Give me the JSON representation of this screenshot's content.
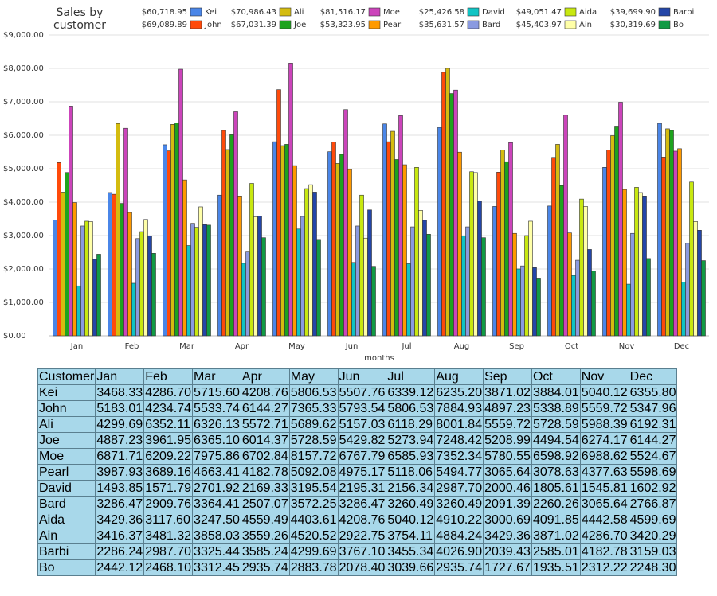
{
  "chart_data": {
    "type": "bar",
    "title": "Sales by customer",
    "x_label": "months",
    "categories": [
      "Jan",
      "Feb",
      "Mar",
      "Apr",
      "May",
      "Jun",
      "Jul",
      "Aug",
      "Sep",
      "Oct",
      "Nov",
      "Dec"
    ],
    "ylim": [
      0,
      9000
    ],
    "yticks": [
      {
        "value": 0,
        "label": "$0.00"
      },
      {
        "value": 1000,
        "label": "$1,000.00"
      },
      {
        "value": 2000,
        "label": "$2,000.00"
      },
      {
        "value": 3000,
        "label": "$3,000.00"
      },
      {
        "value": 4000,
        "label": "$4,000.00"
      },
      {
        "value": 5000,
        "label": "$5,000.00"
      },
      {
        "value": 6000,
        "label": "$6,000.00"
      },
      {
        "value": 7000,
        "label": "$7,000.00"
      },
      {
        "value": 8000,
        "label": "$8,000.00"
      },
      {
        "value": 9000,
        "label": "$9,000.00"
      }
    ],
    "grid": true,
    "series": [
      {
        "name": "Kei",
        "color": "#4a86e8",
        "total": "$60,718.95",
        "values": [
          3468.33,
          4286.7,
          5715.6,
          4208.76,
          5806.53,
          5507.76,
          6339.12,
          6235.2,
          3871.02,
          3884.01,
          5040.12,
          6355.8
        ]
      },
      {
        "name": "John",
        "color": "#ff4a0a",
        "total": "$69,089.89",
        "values": [
          5183.01,
          4234.74,
          5533.74,
          6144.27,
          7365.33,
          5793.54,
          5806.53,
          7884.93,
          4897.23,
          5338.89,
          5559.72,
          5347.96
        ]
      },
      {
        "name": "Ali",
        "color": "#d4bc10",
        "total": "$70,986.43",
        "values": [
          4299.69,
          6352.11,
          6326.13,
          5572.71,
          5689.62,
          5157.03,
          6118.29,
          8001.84,
          5559.72,
          5728.59,
          5988.39,
          6192.31
        ]
      },
      {
        "name": "Joe",
        "color": "#1ea31e",
        "total": "$67,031.39",
        "values": [
          4887.23,
          3961.95,
          6365.1,
          6014.37,
          5728.59,
          5429.82,
          5273.94,
          7248.42,
          5208.99,
          4494.54,
          6274.17,
          6144.27
        ]
      },
      {
        "name": "Moe",
        "color": "#cc44bb",
        "total": "$81,516.17",
        "values": [
          6871.71,
          6209.22,
          7975.86,
          6702.84,
          8157.72,
          6767.79,
          6585.93,
          7352.34,
          5780.55,
          6598.92,
          6988.62,
          5524.67
        ]
      },
      {
        "name": "Pearl",
        "color": "#ff9a00",
        "total": "$53,323.95",
        "values": [
          3987.93,
          3689.16,
          4663.41,
          4182.78,
          5092.08,
          4975.17,
          5118.06,
          5494.77,
          3065.64,
          3078.63,
          4377.63,
          5598.69
        ]
      },
      {
        "name": "David",
        "color": "#10c4c4",
        "total": "$25,426.58",
        "values": [
          1493.85,
          1571.79,
          2701.92,
          2169.33,
          3195.54,
          2195.31,
          2156.34,
          2987.7,
          2000.46,
          1805.61,
          1545.81,
          1602.92
        ]
      },
      {
        "name": "Bard",
        "color": "#8a9ae0",
        "total": "$35,631.57",
        "values": [
          3286.47,
          2909.76,
          3364.41,
          2507.07,
          3572.25,
          3286.47,
          3260.49,
          3260.49,
          2091.39,
          2260.26,
          3065.64,
          2766.87
        ]
      },
      {
        "name": "Aida",
        "color": "#c8e810",
        "total": "$49,051.47",
        "values": [
          3429.36,
          3117.6,
          3247.5,
          4559.49,
          4403.61,
          4208.76,
          5040.12,
          4910.22,
          3000.69,
          4091.85,
          4442.58,
          4599.69
        ]
      },
      {
        "name": "Ain",
        "color": "#ffffa8",
        "total": "$45,403.97",
        "values": [
          3416.37,
          3481.32,
          3858.03,
          3559.26,
          4520.52,
          2922.75,
          3754.11,
          4884.24,
          3429.36,
          3871.02,
          4286.7,
          3420.29
        ]
      },
      {
        "name": "Barbi",
        "color": "#2446a8",
        "total": "$39,699.90",
        "values": [
          2286.24,
          2987.7,
          3325.44,
          3585.24,
          4299.69,
          3767.1,
          3455.34,
          4026.9,
          2039.43,
          2585.01,
          4182.78,
          3159.03
        ]
      },
      {
        "name": "Bo",
        "color": "#119a44",
        "total": "$30,319.69",
        "values": [
          2442.12,
          2468.1,
          3312.45,
          2935.74,
          2883.78,
          2078.4,
          3039.66,
          2935.74,
          1727.67,
          1935.51,
          2312.22,
          2248.3
        ]
      }
    ]
  },
  "table": {
    "header": [
      "Customer",
      "Jan",
      "Feb",
      "Mar",
      "Apr",
      "May",
      "Jun",
      "Jul",
      "Aug",
      "Sep",
      "Oct",
      "Nov",
      "Dec"
    ],
    "rows": [
      [
        "Kei",
        "3468.33",
        "4286.70",
        "5715.60",
        "4208.76",
        "5806.53",
        "5507.76",
        "6339.12",
        "6235.20",
        "3871.02",
        "3884.01",
        "5040.12",
        "6355.80"
      ],
      [
        "John",
        "5183.01",
        "4234.74",
        "5533.74",
        "6144.27",
        "7365.33",
        "5793.54",
        "5806.53",
        "7884.93",
        "4897.23",
        "5338.89",
        "5559.72",
        "5347.96"
      ],
      [
        "Ali",
        "4299.69",
        "6352.11",
        "6326.13",
        "5572.71",
        "5689.62",
        "5157.03",
        "6118.29",
        "8001.84",
        "5559.72",
        "5728.59",
        "5988.39",
        "6192.31"
      ],
      [
        "Joe",
        "4887.23",
        "3961.95",
        "6365.10",
        "6014.37",
        "5728.59",
        "5429.82",
        "5273.94",
        "7248.42",
        "5208.99",
        "4494.54",
        "6274.17",
        "6144.27"
      ],
      [
        "Moe",
        "6871.71",
        "6209.22",
        "7975.86",
        "6702.84",
        "8157.72",
        "6767.79",
        "6585.93",
        "7352.34",
        "5780.55",
        "6598.92",
        "6988.62",
        "5524.67"
      ],
      [
        "Pearl",
        "3987.93",
        "3689.16",
        "4663.41",
        "4182.78",
        "5092.08",
        "4975.17",
        "5118.06",
        "5494.77",
        "3065.64",
        "3078.63",
        "4377.63",
        "5598.69"
      ],
      [
        "David",
        "1493.85",
        "1571.79",
        "2701.92",
        "2169.33",
        "3195.54",
        "2195.31",
        "2156.34",
        "2987.70",
        "2000.46",
        "1805.61",
        "1545.81",
        "1602.92"
      ],
      [
        "Bard",
        "3286.47",
        "2909.76",
        "3364.41",
        "2507.07",
        "3572.25",
        "3286.47",
        "3260.49",
        "3260.49",
        "2091.39",
        "2260.26",
        "3065.64",
        "2766.87"
      ],
      [
        "Aida",
        "3429.36",
        "3117.60",
        "3247.50",
        "4559.49",
        "4403.61",
        "4208.76",
        "5040.12",
        "4910.22",
        "3000.69",
        "4091.85",
        "4442.58",
        "4599.69"
      ],
      [
        "Ain",
        "3416.37",
        "3481.32",
        "3858.03",
        "3559.26",
        "4520.52",
        "2922.75",
        "3754.11",
        "4884.24",
        "3429.36",
        "3871.02",
        "4286.70",
        "3420.29"
      ],
      [
        "Barbi",
        "2286.24",
        "2987.70",
        "3325.44",
        "3585.24",
        "4299.69",
        "3767.10",
        "3455.34",
        "4026.90",
        "2039.43",
        "2585.01",
        "4182.78",
        "3159.03"
      ],
      [
        "Bo",
        "2442.12",
        "2468.10",
        "3312.45",
        "2935.74",
        "2883.78",
        "2078.40",
        "3039.66",
        "2935.74",
        "1727.67",
        "1935.51",
        "2312.22",
        "2248.30"
      ]
    ]
  }
}
